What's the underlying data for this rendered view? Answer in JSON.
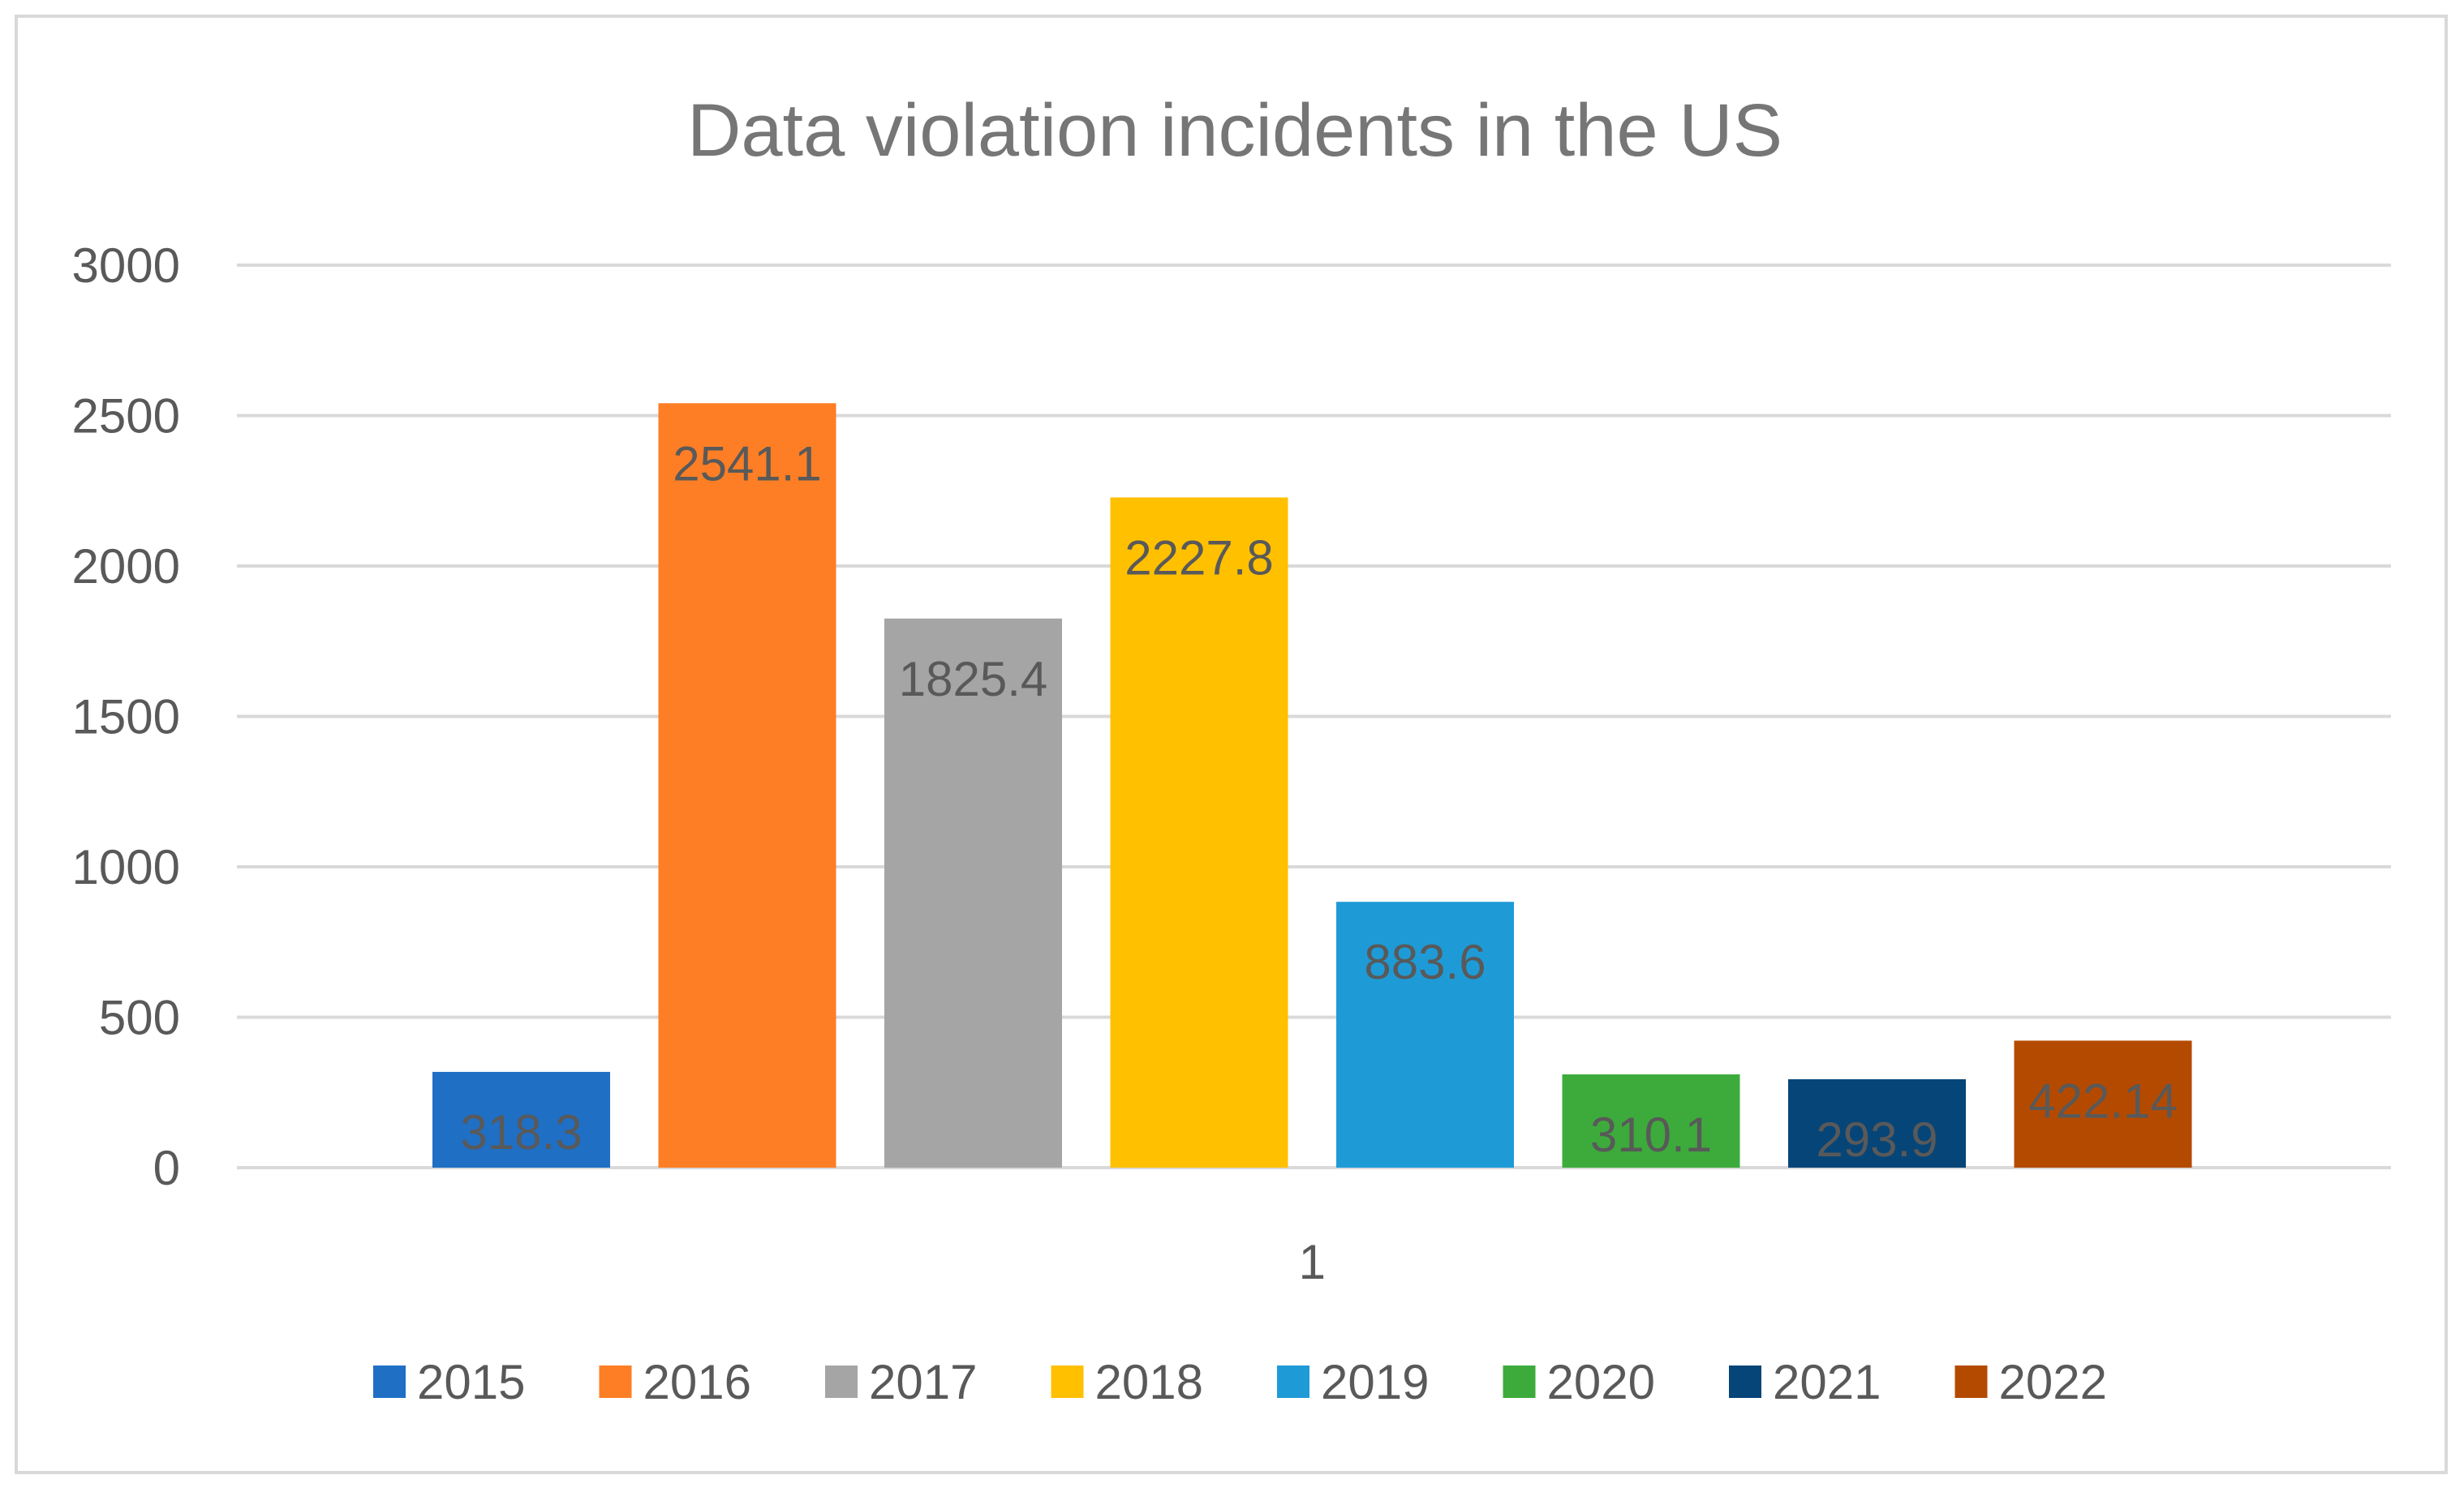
{
  "chart_data": {
    "type": "bar",
    "title": "Data violation incidents in the US",
    "xlabel": "",
    "ylabel": "",
    "categories": [
      "1"
    ],
    "ylim": [
      0,
      3000
    ],
    "yticks": [
      "3000",
      "2500",
      "2000",
      "1500",
      "1000",
      "500",
      "0"
    ],
    "ytick_values": [
      3000,
      2500,
      2000,
      1500,
      1000,
      500,
      0
    ],
    "grid": true,
    "legend_position": "bottom",
    "series": [
      {
        "name": "2015",
        "values": [
          318.3
        ],
        "label": "318.3",
        "color": "#1f6fc5"
      },
      {
        "name": "2016",
        "values": [
          2541.1
        ],
        "label": "2541.1",
        "color": "#fd7e25"
      },
      {
        "name": "2017",
        "values": [
          1825.4
        ],
        "label": "1825.4",
        "color": "#a5a5a5"
      },
      {
        "name": "2018",
        "values": [
          2227.8
        ],
        "label": "2227.8",
        "color": "#ffc000"
      },
      {
        "name": "2019",
        "values": [
          883.6
        ],
        "label": "883.6",
        "color": "#1e9bd7"
      },
      {
        "name": "2020",
        "values": [
          310.1
        ],
        "label": "310.1",
        "color": "#3dab3c"
      },
      {
        "name": "2021",
        "values": [
          293.9
        ],
        "label": "293.9",
        "color": "#064578"
      },
      {
        "name": "2022",
        "values": [
          422.14
        ],
        "label": "422.14",
        "color": "#b44a00"
      }
    ]
  }
}
